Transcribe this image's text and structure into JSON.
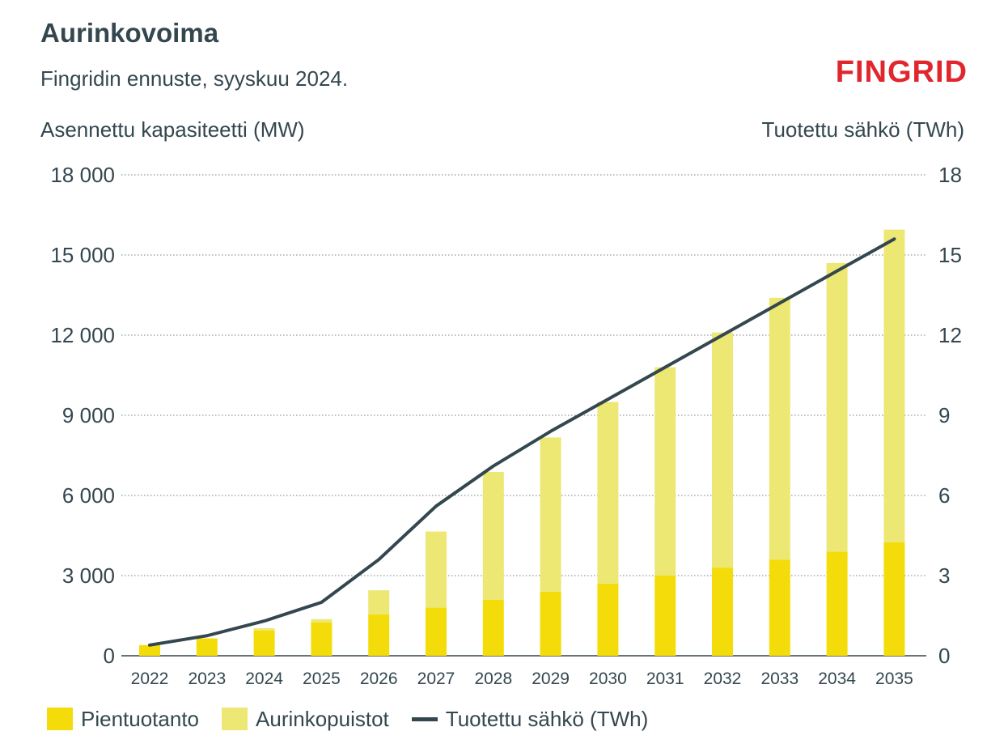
{
  "header": {
    "title": "Aurinkovoima",
    "subtitle": "Fingridin ennuste, syyskuu 2024.",
    "brand": "FINGRID"
  },
  "colors": {
    "small": "#f4dc0a",
    "parks": "#ece873",
    "line": "#34474f",
    "grid": "#8a9aa0",
    "brand": "#e1262d"
  },
  "chart_data": {
    "type": "bar",
    "stacked": true,
    "title": "Aurinkovoima",
    "ylabel_left": "Asennettu kapasiteetti (MW)",
    "ylabel_right": "Tuotettu sähkö (TWh)",
    "ylim_left": [
      0,
      18000
    ],
    "ylim_right": [
      0,
      18
    ],
    "yticks_left": [
      "0",
      "3 000",
      "6 000",
      "9 000",
      "12 000",
      "15 000",
      "18 000"
    ],
    "yticks_right": [
      "0",
      "3",
      "6",
      "9",
      "12",
      "15",
      "18"
    ],
    "categories": [
      "2022",
      "2023",
      "2024",
      "2025",
      "2026",
      "2027",
      "2028",
      "2029",
      "2030",
      "2031",
      "2032",
      "2033",
      "2034",
      "2035"
    ],
    "series": [
      {
        "name": "Pientuotanto",
        "type": "bar",
        "values": [
          400,
          650,
          950,
          1250,
          1550,
          1800,
          2100,
          2400,
          2700,
          3000,
          3300,
          3600,
          3900,
          4250
        ]
      },
      {
        "name": "Aurinkopuistot",
        "type": "bar",
        "values": [
          0,
          0,
          80,
          120,
          900,
          2850,
          4780,
          5770,
          6800,
          7800,
          8800,
          9800,
          10800,
          11700
        ]
      },
      {
        "name": "Tuotettu sähkö (TWh)",
        "type": "line",
        "axis": "right",
        "values": [
          0.4,
          0.75,
          1.3,
          2.0,
          3.6,
          5.6,
          7.1,
          8.4,
          9.6,
          10.8,
          12.0,
          13.2,
          14.4,
          15.6
        ]
      }
    ],
    "legend": [
      "Pientuotanto",
      "Aurinkopuistot",
      "Tuotettu sähkö (TWh)"
    ]
  }
}
